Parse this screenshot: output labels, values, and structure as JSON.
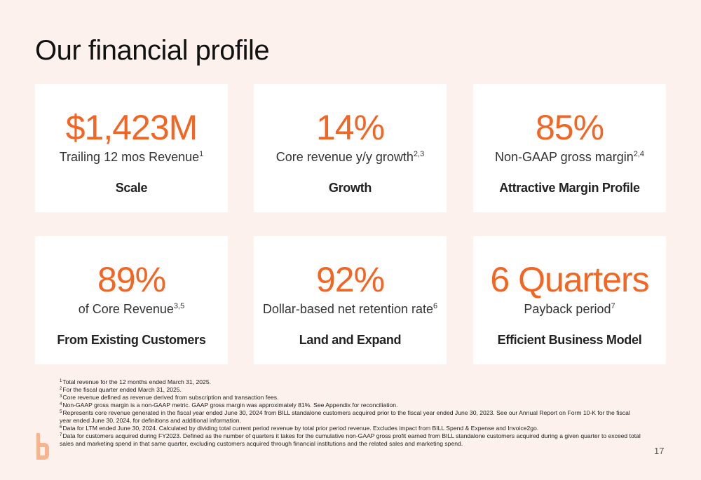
{
  "header": {
    "title": "Our financial profile"
  },
  "cards": [
    {
      "value": "$1,423M",
      "label": "Trailing 12 mos Revenue",
      "sup": "1",
      "heading": "Scale"
    },
    {
      "value": "14%",
      "label": "Core revenue y/y growth",
      "sup": "2,3",
      "heading": "Growth"
    },
    {
      "value": "85%",
      "label": "Non-GAAP gross margin",
      "sup": "2,4",
      "heading": "Attractive Margin Profile"
    },
    {
      "value": "89%",
      "label": "of Core Revenue",
      "sup": "3,5",
      "heading": "From Existing Customers"
    },
    {
      "value": "92%",
      "label": "Dollar-based net retention rate",
      "sup": "6",
      "heading": "Land and Expand"
    },
    {
      "value": "6 Quarters",
      "label": "Payback period",
      "sup": "7",
      "heading": "Efficient Business Model"
    }
  ],
  "footnotes": [
    {
      "num": "1",
      "text": "Total revenue for the 12 months ended March 31, 2025."
    },
    {
      "num": "2",
      "text": "For the fiscal quarter ended March 31, 2025."
    },
    {
      "num": "3",
      "text": "Core revenue defined as revenue derived from subscription and transaction fees."
    },
    {
      "num": "4",
      "text": "Non-GAAP gross margin is a non-GAAP metric. GAAP gross margin was approximately 81%. See Appendix for reconciliation."
    },
    {
      "num": "5",
      "text": "Represents core revenue generated in the fiscal year ended June 30, 2024 from BILL standalone customers acquired prior to the fiscal year ended June 30, 2023.  See our Annual Report on Form 10-K for the fiscal year ended June 30, 2024, for definitions and additional information."
    },
    {
      "num": "6",
      "text": "Data for LTM ended June 30, 2024. Calculated by dividing total current period revenue by total prior period revenue. Excludes impact from BILL Spend & Expense and Invoice2go."
    },
    {
      "num": "7",
      "text": "Data for customers acquired during FY2023. Defined as the number of quarters it takes for the cumulative non-GAAP gross profit earned from BILL standalone customers acquired during a given quarter to exceed total sales and marketing spend in that same quarter, excluding customers acquired through financial institutions and the related sales and marketing spend."
    }
  ],
  "page_number": "17"
}
